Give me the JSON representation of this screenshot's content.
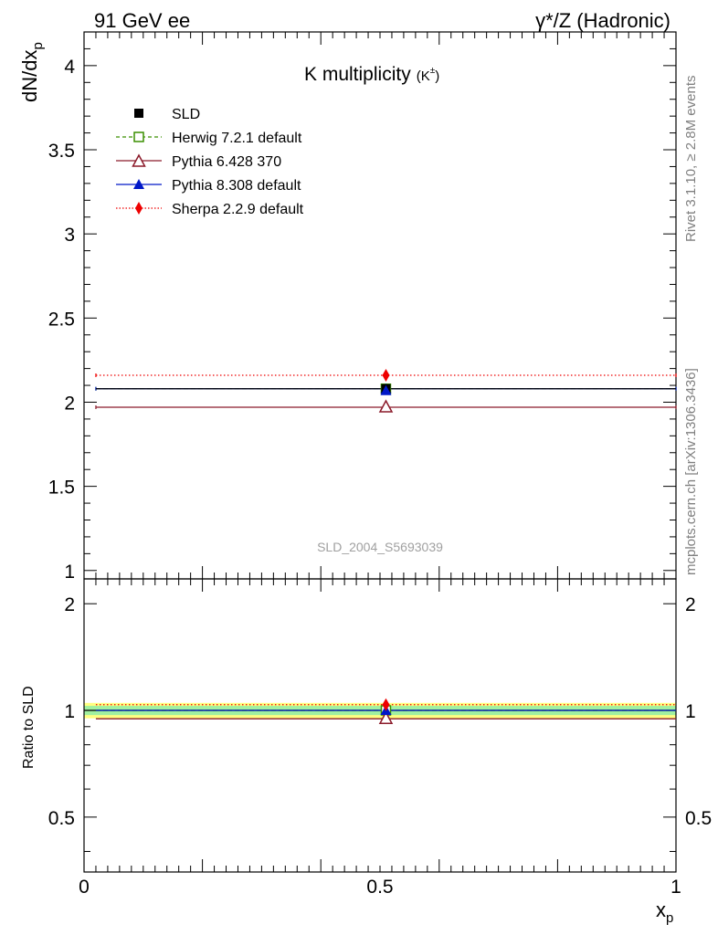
{
  "header": {
    "left": "91 GeV ee",
    "right": "γ*/Z (Hadronic)"
  },
  "side_text": {
    "rivet": "Rivet 3.1.10, ≥ 2.8M events",
    "mcplots": "mcplots.cern.ch [arXiv:1306.3436]"
  },
  "watermark": "SLD_2004_S5693039",
  "chart_data": [
    {
      "type": "scatter",
      "title": "K multiplicity",
      "title_suffix": "(K",
      "title_suffix_sup": "±",
      "title_suffix_end": ")",
      "ylabel_main": "dN/dx",
      "ylabel_sub": "p",
      "xlabel_main": "x",
      "xlabel_sub": "p",
      "xlim": [
        0,
        1
      ],
      "ylim": [
        0.95,
        4.2
      ],
      "x_ticks": [
        "0",
        "0.5",
        "1"
      ],
      "y_ticks": [
        "1",
        "1.5",
        "2",
        "2.5",
        "3",
        "3.5",
        "4"
      ],
      "series": [
        {
          "name": "SLD",
          "color": "#000000",
          "marker": "square-filled",
          "line": "none",
          "x": [
            0.51
          ],
          "xerr": [
            0.49,
            0.49
          ],
          "values": [
            2.08
          ],
          "yerr": 0.01
        },
        {
          "name": "Herwig 7.2.1 default",
          "color": "#3a8f00",
          "marker": "square-open",
          "line": "dashed",
          "x": [
            0.51
          ],
          "values": [
            2.08
          ]
        },
        {
          "name": "Pythia 6.428 370",
          "color": "#8b1a2a",
          "marker": "triangle-open",
          "line": "solid",
          "x": [
            0.51
          ],
          "values": [
            1.97
          ]
        },
        {
          "name": "Pythia 8.308 default",
          "color": "#0018c8",
          "marker": "triangle-filled",
          "line": "solid",
          "x": [
            0.51
          ],
          "values": [
            2.08
          ]
        },
        {
          "name": "Sherpa 2.2.9 default",
          "color": "#ee0000",
          "marker": "diamond-filled",
          "line": "dotted",
          "x": [
            0.51
          ],
          "values": [
            2.16
          ]
        }
      ]
    },
    {
      "type": "scatter",
      "ylabel": "Ratio to SLD",
      "xlim": [
        0,
        1
      ],
      "ylim": [
        0.35,
        2.35
      ],
      "log_y": true,
      "y_ticks": [
        "0.5",
        "1",
        "2"
      ],
      "band": {
        "inner": [
          0.97,
          1.03
        ],
        "outer": [
          0.95,
          1.05
        ],
        "inner_color": "#a0f0a0",
        "outer_color": "#ffff80"
      },
      "series": [
        {
          "name": "Herwig 7.2.1 default",
          "x": [
            0.51
          ],
          "values": [
            1.0
          ]
        },
        {
          "name": "Pythia 6.428 370",
          "x": [
            0.51
          ],
          "values": [
            0.947
          ]
        },
        {
          "name": "Pythia 8.308 default",
          "x": [
            0.51
          ],
          "values": [
            1.0
          ]
        },
        {
          "name": "Sherpa 2.2.9 default",
          "x": [
            0.51
          ],
          "values": [
            1.038
          ]
        }
      ]
    }
  ]
}
